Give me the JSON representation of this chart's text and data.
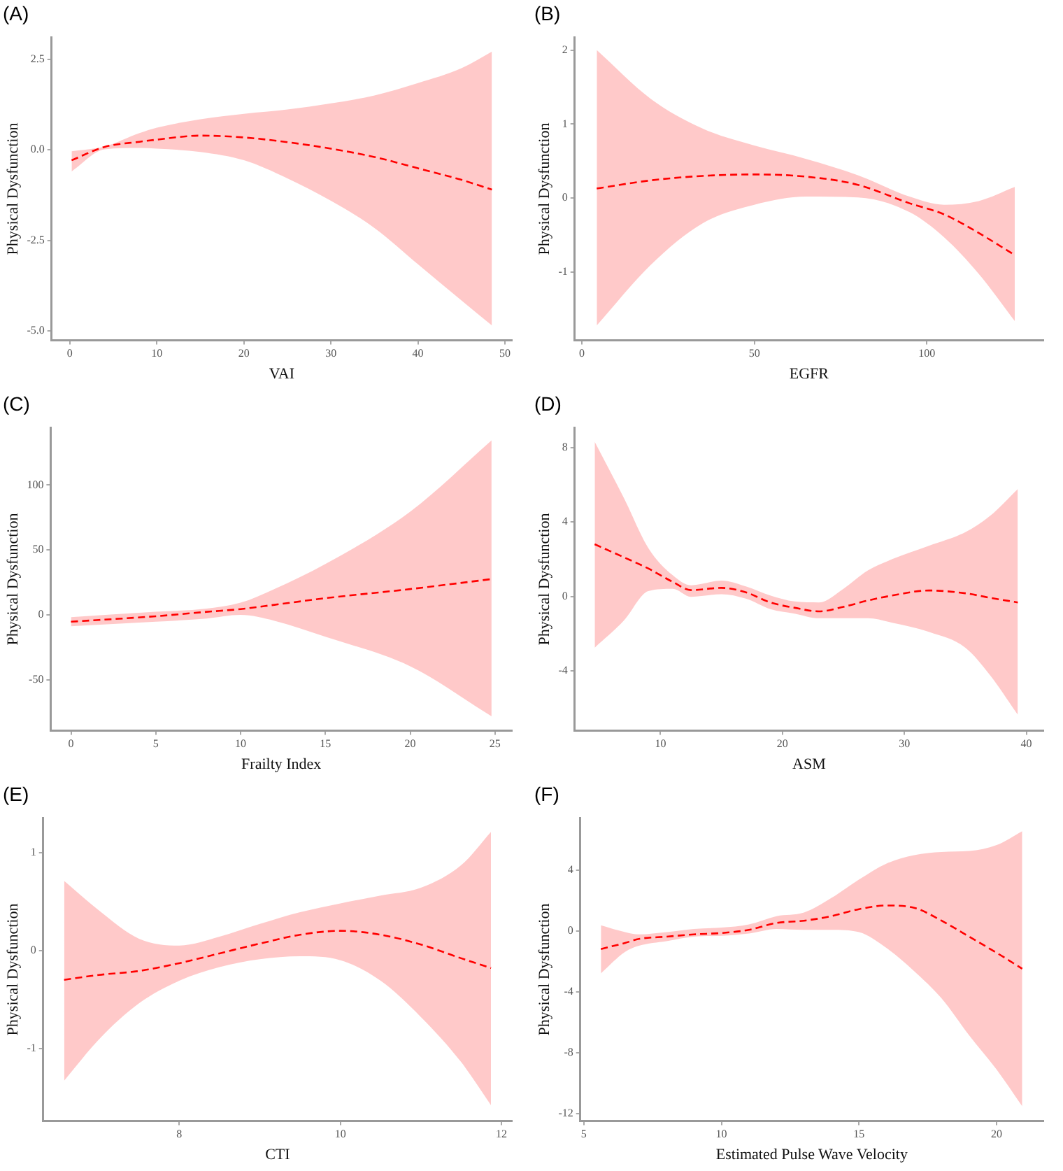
{
  "chart_data": [
    {
      "type": "line",
      "title": "(A)",
      "xlabel": "VAI",
      "ylabel": "Physical Dysfunction",
      "xlim": [
        -2.1,
        50.8
      ],
      "ylim": [
        -5.26,
        3.1
      ],
      "xticks": [
        0,
        10,
        20,
        30,
        40,
        50
      ],
      "yticks": [
        {
          "value": -5,
          "label": "-5.0"
        },
        {
          "value": -2.5,
          "label": "-2.5"
        },
        {
          "value": 0,
          "label": "0.0"
        },
        {
          "value": 2.5,
          "label": "2.5"
        }
      ],
      "grid": false,
      "legend": false,
      "series": [
        {
          "color": "#ff0000",
          "line_style": "dashed",
          "x": [
            0.2,
            4,
            8,
            10,
            15,
            20,
            25,
            30,
            35,
            40,
            45,
            48.5
          ],
          "values": [
            -0.29,
            0.08,
            0.22,
            0.28,
            0.39,
            0.34,
            0.21,
            0.03,
            -0.2,
            -0.51,
            -0.83,
            -1.1
          ],
          "lower": [
            -0.6,
            0.01,
            0.05,
            0.03,
            -0.06,
            -0.29,
            -0.79,
            -1.41,
            -2.16,
            -3.16,
            -4.16,
            -4.85
          ],
          "upper": [
            -0.04,
            0.09,
            0.46,
            0.61,
            0.84,
            0.99,
            1.11,
            1.28,
            1.5,
            1.84,
            2.25,
            2.71
          ]
        }
      ]
    },
    {
      "type": "line",
      "title": "(B)",
      "xlabel": "EGFR",
      "ylabel": "Physical Dysfunction",
      "xlim": [
        -2.1,
        133.8
      ],
      "ylim": [
        -1.92,
        2.17
      ],
      "xticks": [
        0,
        50,
        100
      ],
      "yticks": [
        -1,
        0,
        1,
        2
      ],
      "grid": false,
      "legend": false,
      "series": [
        {
          "color": "#ff0000",
          "line_style": "dashed",
          "x": [
            4.3,
            20,
            35,
            50,
            65,
            80,
            95,
            105,
            115,
            125.5
          ],
          "values": [
            0.13,
            0.24,
            0.3,
            0.32,
            0.29,
            0.18,
            -0.07,
            -0.22,
            -0.47,
            -0.77
          ],
          "lower": [
            -1.72,
            -0.9,
            -0.34,
            -0.09,
            0.02,
            0.01,
            -0.19,
            -0.53,
            -1.02,
            -1.66
          ],
          "upper": [
            2.0,
            1.34,
            0.94,
            0.71,
            0.53,
            0.31,
            0.02,
            -0.09,
            -0.04,
            0.15
          ]
        }
      ]
    },
    {
      "type": "line",
      "title": "(C)",
      "xlabel": "Frailty Index",
      "ylabel": "Physical Dysfunction",
      "xlim": [
        -1.2,
        26
      ],
      "ylim": [
        -89,
        144
      ],
      "xticks": [
        0,
        5,
        10,
        15,
        20,
        25
      ],
      "yticks": [
        -50,
        0,
        50,
        100
      ],
      "grid": false,
      "legend": false,
      "series": [
        {
          "color": "#ff0000",
          "line_style": "dashed",
          "x": [
            0,
            5,
            8,
            10,
            12,
            15,
            20,
            24.8
          ],
          "values": [
            -5.2,
            -1,
            2.4,
            4.5,
            7.8,
            12.9,
            19.9,
            27.6
          ],
          "lower": [
            -8.7,
            -5.2,
            -2.8,
            0,
            -4.5,
            -16.8,
            -39.5,
            -78
          ],
          "upper": [
            -1.7,
            2.4,
            4.9,
            9.4,
            20,
            39.2,
            79.4,
            134.3
          ]
        }
      ]
    },
    {
      "type": "line",
      "title": "(D)",
      "xlabel": "ASM",
      "ylabel": "Physical Dysfunction",
      "xlim": [
        2.96,
        41.4
      ],
      "ylim": [
        -7.2,
        9.05
      ],
      "xticks": [
        10,
        20,
        30,
        40
      ],
      "yticks": [
        -4,
        0,
        4,
        8
      ],
      "grid": false,
      "legend": false,
      "series": [
        {
          "color": "#ff0000",
          "line_style": "dashed",
          "x": [
            4.6,
            7,
            9,
            11,
            12.5,
            15,
            17,
            19,
            21,
            23,
            25,
            27,
            29,
            32,
            35,
            37,
            39.3
          ],
          "values": [
            2.8,
            2.1,
            1.5,
            0.78,
            0.34,
            0.46,
            0.22,
            -0.32,
            -0.61,
            -0.8,
            -0.56,
            -0.22,
            0.05,
            0.32,
            0.17,
            -0.07,
            -0.32
          ],
          "lower": [
            -2.75,
            -1.29,
            0.29,
            0.41,
            -0.02,
            0.12,
            -0.12,
            -0.68,
            -0.92,
            -1.17,
            -1.17,
            -1.17,
            -1.41,
            -1.9,
            -2.75,
            -4.21,
            -6.35
          ],
          "upper": [
            8.3,
            5.28,
            2.6,
            1.14,
            0.6,
            0.85,
            0.54,
            0.05,
            -0.27,
            -0.32,
            0.41,
            1.39,
            2.0,
            2.72,
            3.45,
            4.31,
            5.77
          ]
        }
      ]
    },
    {
      "type": "line",
      "title": "(E)",
      "xlabel": "CTI",
      "ylabel": "Physical Dysfunction",
      "xlim": [
        6.31,
        12.13
      ],
      "ylim": [
        -1.74,
        1.35
      ],
      "xticks": [
        8,
        10,
        12
      ],
      "yticks": [
        -1,
        0,
        1
      ],
      "grid": false,
      "legend": false,
      "series": [
        {
          "color": "#ff0000",
          "line_style": "dashed",
          "x": [
            6.57,
            7,
            7.5,
            8,
            8.5,
            9,
            9.5,
            10,
            10.5,
            11,
            11.5,
            11.87
          ],
          "values": [
            -0.3,
            -0.25,
            -0.21,
            -0.13,
            -0.03,
            0.07,
            0.16,
            0.2,
            0.16,
            0.06,
            -0.08,
            -0.18
          ],
          "lower": [
            -1.33,
            -0.91,
            -0.54,
            -0.31,
            -0.17,
            -0.09,
            -0.06,
            -0.1,
            -0.31,
            -0.68,
            -1.14,
            -1.58
          ],
          "upper": [
            0.71,
            0.41,
            0.12,
            0.05,
            0.14,
            0.27,
            0.39,
            0.48,
            0.56,
            0.64,
            0.87,
            1.21
          ]
        }
      ]
    },
    {
      "type": "line",
      "title": "(F)",
      "xlabel": "Estimated Pulse Wave Velocity",
      "ylabel": "Physical Dysfunction",
      "xlim": [
        4.87,
        21.7
      ],
      "ylim": [
        -12.5,
        7.4
      ],
      "xticks": [
        5,
        10,
        15,
        20
      ],
      "yticks": [
        -12,
        -8,
        -4,
        0,
        4
      ],
      "grid": false,
      "legend": false,
      "series": [
        {
          "color": "#ff0000",
          "line_style": "dashed",
          "x": [
            5.62,
            6.5,
            7,
            8,
            9,
            10,
            11,
            12,
            13,
            14,
            15,
            16,
            17,
            18,
            19,
            20,
            20.93
          ],
          "values": [
            -1.2,
            -0.8,
            -0.54,
            -0.39,
            -0.24,
            -0.15,
            0.06,
            0.51,
            0.66,
            0.96,
            1.42,
            1.66,
            1.51,
            0.66,
            -0.39,
            -1.45,
            -2.5
          ],
          "lower": [
            -2.8,
            -1.39,
            -0.99,
            -0.69,
            -0.39,
            -0.33,
            -0.18,
            0.12,
            0.06,
            0.06,
            -0.09,
            -1.14,
            -2.65,
            -4.45,
            -6.87,
            -9.13,
            -11.54
          ],
          "upper": [
            0.36,
            -0.09,
            -0.24,
            -0.09,
            0.12,
            0.21,
            0.42,
            0.96,
            1.2,
            2.16,
            3.37,
            4.42,
            4.97,
            5.18,
            5.24,
            5.63,
            6.54
          ]
        }
      ]
    }
  ]
}
